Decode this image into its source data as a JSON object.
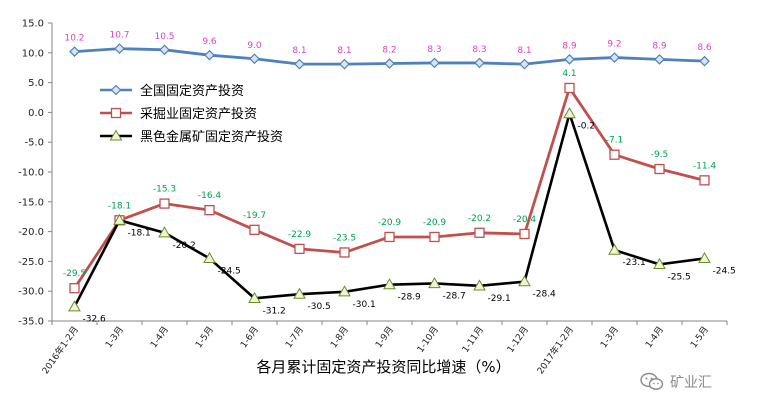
{
  "chart_data": {
    "type": "line",
    "title": "",
    "xlabel": "各月累计固定资产投资同比增速（%）",
    "ylabel": "",
    "ylim": [
      -35,
      15
    ],
    "ytick_step": 5,
    "grid": false,
    "legend_position": "upper-left (inside plot)",
    "categories": [
      "2016年1-2月",
      "1-3月",
      "1-4月",
      "1-5月",
      "1-6月",
      "1-7月",
      "1-8月",
      "1-9月",
      "1-10月",
      "1-11月",
      "1-12月",
      "2017年1-2月",
      "1-3月",
      "1-4月",
      "1-5月"
    ],
    "series": [
      {
        "name": "全国固定资产投资",
        "color": "#4f81bd",
        "label_color": "#e040c0",
        "marker": "diamond",
        "values": [
          10.2,
          10.7,
          10.5,
          9.6,
          9.0,
          8.1,
          8.1,
          8.2,
          8.3,
          8.3,
          8.1,
          8.9,
          9.2,
          8.9,
          8.6
        ],
        "labels": [
          "10.2",
          "10.7",
          "10.5",
          "9.6",
          "9.0",
          "8.1",
          "8.1",
          "8.2",
          "8.3",
          "8.3",
          "8.1",
          "8.9",
          "9.2",
          "8.9",
          "8.6"
        ]
      },
      {
        "name": "采掘业固定资产投资",
        "color": "#c0504d",
        "label_color": "#00a050",
        "marker": "square",
        "values": [
          -29.5,
          -18.1,
          -15.3,
          -16.4,
          -19.7,
          -22.9,
          -23.5,
          -20.9,
          -20.9,
          -20.2,
          -20.4,
          4.1,
          -7.1,
          -9.5,
          -11.4
        ],
        "labels": [
          "-29.5",
          "-18.1",
          "-15.3",
          "-16.4",
          "-19.7",
          "-22.9",
          "-23.5",
          "-20.9",
          "-20.9",
          "-20.2",
          "-20.4",
          "4.1",
          "-7.1",
          "-9.5",
          "-11.4"
        ]
      },
      {
        "name": "黑色金属矿固定资产投资",
        "color": "#000000",
        "label_color": "#000000",
        "marker": "triangle",
        "values": [
          -32.6,
          -18.1,
          -20.2,
          -24.5,
          -31.2,
          -30.5,
          -30.1,
          -28.9,
          -28.7,
          -29.1,
          -28.4,
          -0.2,
          -23.1,
          -25.5,
          -24.5
        ],
        "labels": [
          "-32.6",
          "-18.1",
          "-20.2",
          "-24.5",
          "-31.2",
          "-30.5",
          "-30.1",
          "-28.9",
          "-28.7",
          "-29.1",
          "-28.4",
          "-0.2",
          "-23.1",
          "-25.5",
          "-24.5"
        ]
      }
    ]
  },
  "watermark": {
    "text": "矿业汇",
    "icon": "wechat-icon"
  }
}
